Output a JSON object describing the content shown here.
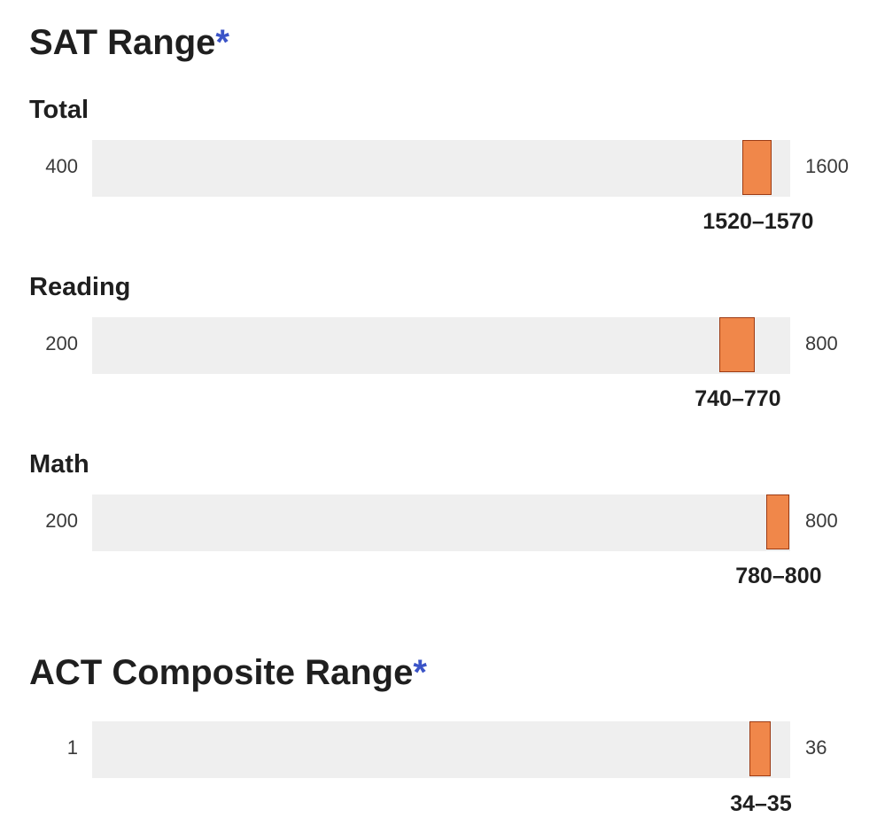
{
  "sat": {
    "title": "SAT Range",
    "asterisk": "*",
    "rows": [
      {
        "label": "Total",
        "min": "400",
        "max": "1600",
        "low": 1520,
        "high": 1570,
        "range_text": "1520–1570"
      },
      {
        "label": "Reading",
        "min": "200",
        "max": "800",
        "low": 740,
        "high": 770,
        "range_text": "740–770"
      },
      {
        "label": "Math",
        "min": "200",
        "max": "800",
        "low": 780,
        "high": 800,
        "range_text": "780–800"
      }
    ]
  },
  "act": {
    "title": "ACT Composite Range",
    "asterisk": "*",
    "row": {
      "min": "1",
      "max": "36",
      "low": 34,
      "high": 35,
      "range_text": "34–35"
    }
  },
  "colors": {
    "marker_fill": "#f0874a",
    "marker_border": "#9c3b14",
    "track": "#efefef",
    "asterisk": "#3b54c7"
  }
}
